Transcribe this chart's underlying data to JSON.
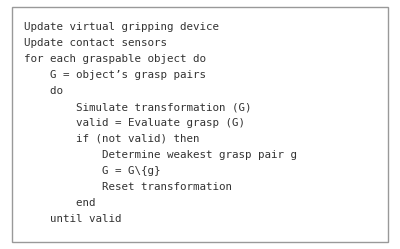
{
  "lines": [
    "Update virtual gripping device",
    "Update contact sensors",
    "for each graspable object do",
    "    G = object’s grasp pairs",
    "    do",
    "        Simulate transformation (G)",
    "        valid = Evaluate grasp (G)",
    "        if (not valid) then",
    "            Determine weakest grasp pair g",
    "            G = G\\{g}",
    "            Reset transformation",
    "        end",
    "    until valid"
  ],
  "background_color": "#ffffff",
  "border_color": "#999999",
  "text_color": "#333333",
  "font_size": 7.8,
  "fig_width": 4.0,
  "fig_height": 2.49,
  "dpi": 100
}
